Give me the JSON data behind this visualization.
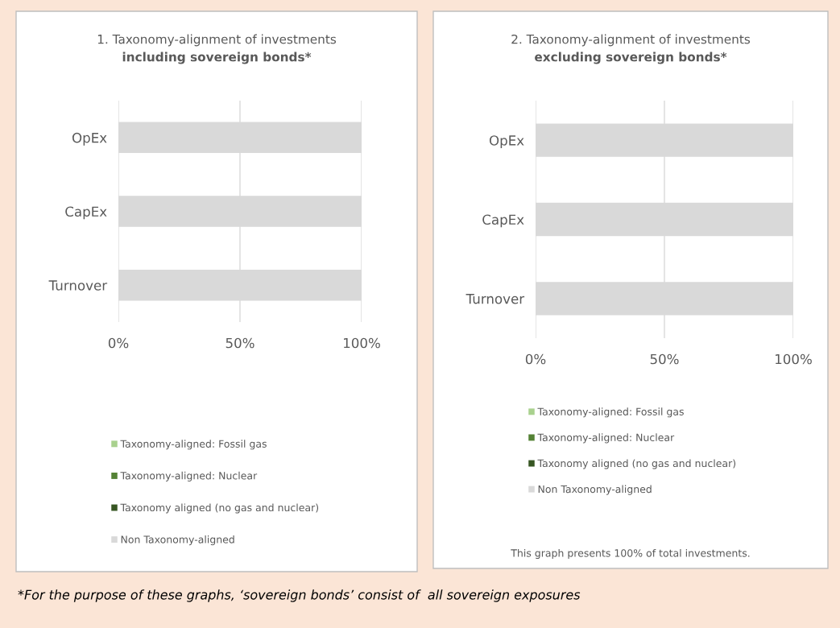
{
  "chart_data": [
    {
      "type": "bar",
      "orientation": "horizontal",
      "stacked": true,
      "title": "1. Taxonomy-alignment of investments",
      "subtitle": "including sovereign bonds*",
      "categories": [
        "OpEx",
        "CapEx",
        "Turnover"
      ],
      "series": [
        {
          "name": "Taxonomy-aligned: Fossil gas",
          "color": "#a9d18e",
          "values": [
            0,
            0,
            0
          ]
        },
        {
          "name": "Taxonomy-aligned: Nuclear",
          "color": "#548235",
          "values": [
            0,
            0,
            0
          ]
        },
        {
          "name": "Taxonomy aligned (no gas and nuclear)",
          "color": "#375623",
          "values": [
            0,
            0,
            0
          ]
        },
        {
          "name": "Non Taxonomy-aligned",
          "color": "#d9d9d9",
          "values": [
            100,
            100,
            100
          ]
        }
      ],
      "xlim": [
        0,
        100
      ],
      "xticks": [
        {
          "value": 0,
          "label": "0%"
        },
        {
          "value": 50,
          "label": "50%"
        },
        {
          "value": 100,
          "label": "100%"
        }
      ],
      "grid": "x",
      "legend": "bottom",
      "annotations": [
        "*For the purpose of these graphs, ‘sovereign bonds’ consist of  all sovereign exposures"
      ]
    },
    {
      "type": "bar",
      "orientation": "horizontal",
      "stacked": true,
      "title": "2. Taxonomy-alignment of investments",
      "subtitle": "excluding sovereign bonds*",
      "categories": [
        "OpEx",
        "CapEx",
        "Turnover"
      ],
      "series": [
        {
          "name": "Taxonomy-aligned: Fossil gas",
          "color": "#a9d18e",
          "values": [
            0,
            0,
            0
          ]
        },
        {
          "name": "Taxonomy-aligned: Nuclear",
          "color": "#548235",
          "values": [
            0,
            0,
            0
          ]
        },
        {
          "name": "Taxonomy aligned (no gas and nuclear)",
          "color": "#375623",
          "values": [
            0,
            0,
            0
          ]
        },
        {
          "name": "Non Taxonomy-aligned",
          "color": "#d9d9d9",
          "values": [
            100,
            100,
            100
          ]
        }
      ],
      "xlim": [
        0,
        100
      ],
      "xticks": [
        {
          "value": 0,
          "label": "0%"
        },
        {
          "value": 50,
          "label": "50%"
        },
        {
          "value": 100,
          "label": "100%"
        }
      ],
      "grid": "x",
      "legend": "bottom",
      "annotations": [
        "This graph presents 100% of total investments."
      ]
    }
  ]
}
